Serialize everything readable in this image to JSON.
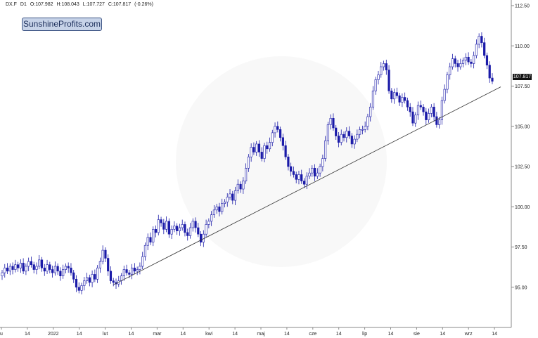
{
  "header": {
    "symbol": "DX.F",
    "interval": "D1",
    "open": "O:107.982",
    "high": "H:108.043",
    "low": "L:107.727",
    "close": "C:107.817",
    "change": "(-0.26%)"
  },
  "logo_text": "SunshineProfits.com",
  "last_price_label": "107.817",
  "colors": {
    "up_candle": "#ffffff",
    "down_candle": "#1a1aa8",
    "candle_outline": "#1a1aa8",
    "trend_line": "#333333",
    "axis": "#888888"
  },
  "chart_data": {
    "type": "candlestick",
    "title": "",
    "xlabel": "",
    "ylabel": "",
    "ylim": [
      92.5,
      112.5
    ],
    "grid": false,
    "y_ticks": [
      "95.00",
      "97.50",
      "100.00",
      "102.50",
      "105.00",
      "107.50",
      "110.00",
      "112.50"
    ],
    "x_ticks": [
      "u",
      "14",
      "2022",
      "14",
      "lut",
      "14",
      "mar",
      "14",
      "kwi",
      "14",
      "maj",
      "14",
      "cze",
      "14",
      "lip",
      "14",
      "sie",
      "14",
      "wrz",
      "14"
    ],
    "closes": [
      95.9,
      96.2,
      96.0,
      96.3,
      96.1,
      96.4,
      96.2,
      96.5,
      96.0,
      96.3,
      96.6,
      96.4,
      96.1,
      96.3,
      96.7,
      96.2,
      96.0,
      96.4,
      96.1,
      95.9,
      96.3,
      96.0,
      95.7,
      96.1,
      96.3,
      96.2,
      95.9,
      95.5,
      95.0,
      94.8,
      95.1,
      95.4,
      95.6,
      95.3,
      95.8,
      95.5,
      96.2,
      96.6,
      97.3,
      96.8,
      96.0,
      95.4,
      95.3,
      95.2,
      95.4,
      95.7,
      96.1,
      95.9,
      95.8,
      96.2,
      96.0,
      96.1,
      96.3,
      96.9,
      97.6,
      98.1,
      97.8,
      98.6,
      98.4,
      99.2,
      99.0,
      98.6,
      99.1,
      98.3,
      98.6,
      98.8,
      98.5,
      98.7,
      98.9,
      98.4,
      98.2,
      98.7,
      99.1,
      98.7,
      98.3,
      97.8,
      98.3,
      98.9,
      99.1,
      99.5,
      99.8,
      100.0,
      99.7,
      100.2,
      100.3,
      100.6,
      100.8,
      100.4,
      101.0,
      101.4,
      101.1,
      101.6,
      102.4,
      103.1,
      103.7,
      103.4,
      103.9,
      103.4,
      103.0,
      103.8,
      103.6,
      104.0,
      104.6,
      105.0,
      104.8,
      104.3,
      103.8,
      103.1,
      102.5,
      102.2,
      102.0,
      101.7,
      102.0,
      101.6,
      101.4,
      101.9,
      102.1,
      102.4,
      101.9,
      102.1,
      102.5,
      103.0,
      104.1,
      105.1,
      105.5,
      104.9,
      104.4,
      104.0,
      104.5,
      104.3,
      104.7,
      104.4,
      103.9,
      104.2,
      104.5,
      104.8,
      104.8,
      105.0,
      105.6,
      106.2,
      107.2,
      107.9,
      108.2,
      108.7,
      108.9,
      108.5,
      107.2,
      106.7,
      107.1,
      106.9,
      106.5,
      106.8,
      106.6,
      106.2,
      105.9,
      105.2,
      105.7,
      106.3,
      106.2,
      105.9,
      105.4,
      105.8,
      106.2,
      105.6,
      105.1,
      105.4,
      106.6,
      107.3,
      108.2,
      108.7,
      109.2,
      108.9,
      108.7,
      108.9,
      109.1,
      109.3,
      109.0,
      108.9,
      109.4,
      110.1,
      110.6,
      110.2,
      109.4,
      108.8,
      108.0,
      107.8
    ]
  },
  "trend_line": {
    "start": {
      "index": 42,
      "value": 95.15
    },
    "end": {
      "index": 205,
      "value": 107.45
    }
  }
}
